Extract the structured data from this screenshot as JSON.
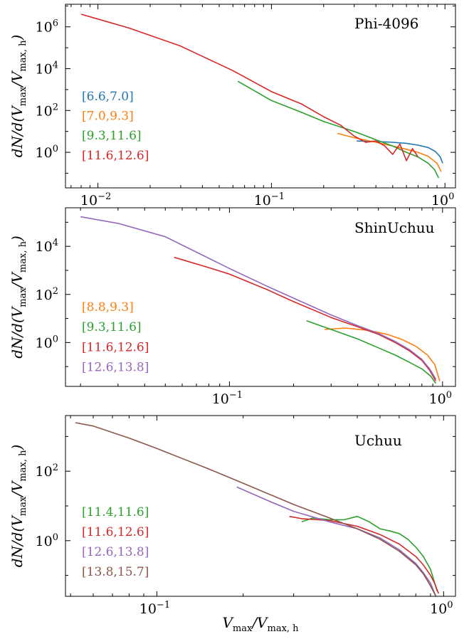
{
  "figure": {
    "xlabel_main": "V",
    "xlabel_sub1": "max",
    "xlabel_div": "/V",
    "xlabel_sub2": "max, h",
    "ylabel": "dN/d(Vmax/Vmax,h)"
  },
  "colors": {
    "blue": "#1f77b4",
    "orange": "#ff7f0e",
    "green": "#2ca02c",
    "red": "#d62728",
    "purple": "#9467bd",
    "brown": "#8c564b"
  },
  "chart_data": [
    {
      "type": "line",
      "title": "Phi-4096",
      "xscale": "log",
      "yscale": "log",
      "xlim": [
        0.0065,
        1.15
      ],
      "ylim": [
        0.02,
        12000000
      ],
      "xticks": [
        {
          "v": 0.01,
          "base": "10",
          "exp": "−2"
        },
        {
          "v": 0.1,
          "base": "10",
          "exp": "−1"
        },
        {
          "v": 1,
          "base": "10",
          "exp": "0"
        }
      ],
      "yticks": [
        {
          "v": 1,
          "base": "10",
          "exp": "0"
        },
        {
          "v": 100,
          "base": "10",
          "exp": "2"
        },
        {
          "v": 10000,
          "base": "10",
          "exp": "4"
        },
        {
          "v": 1000000,
          "base": "10",
          "exp": "6"
        }
      ],
      "legend_position": "left",
      "series": [
        {
          "name": "[6.6,7.0]",
          "color": "#1f77b4",
          "x": [
            0.31,
            0.4,
            0.5,
            0.6,
            0.7,
            0.8,
            0.88,
            0.94,
            0.97
          ],
          "y": [
            3.5,
            3.3,
            3.0,
            2.7,
            2.2,
            1.7,
            1.1,
            0.6,
            0.3
          ]
        },
        {
          "name": "[7.0,9.3]",
          "color": "#ff7f0e",
          "x": [
            0.24,
            0.3,
            0.4,
            0.5,
            0.6,
            0.7,
            0.8,
            0.9,
            0.95
          ],
          "y": [
            8,
            5,
            3,
            2,
            1.4,
            1.0,
            0.65,
            0.3,
            0.12
          ]
        },
        {
          "name": "[9.3,11.6]",
          "color": "#2ca02c",
          "x": [
            0.064,
            0.1,
            0.15,
            0.2,
            0.3,
            0.4,
            0.5,
            0.6,
            0.7,
            0.8,
            0.87,
            0.92
          ],
          "y": [
            2500,
            300,
            80,
            30,
            10,
            4,
            2,
            1.0,
            0.6,
            0.3,
            0.15,
            0.06
          ]
        },
        {
          "name": "[11.6,12.6]",
          "color": "#d62728",
          "x": [
            0.008,
            0.015,
            0.03,
            0.06,
            0.1,
            0.15,
            0.2,
            0.25,
            0.3,
            0.35,
            0.4,
            0.45,
            0.5,
            0.55,
            0.6,
            0.65,
            0.7
          ],
          "y": [
            4000000,
            900000,
            120000,
            8000,
            800,
            200,
            50,
            20,
            6,
            3,
            3.5,
            2,
            0.8,
            2.5,
            0.4,
            1.5,
            0.6
          ]
        }
      ]
    },
    {
      "type": "line",
      "title": "ShinUchuu",
      "xscale": "log",
      "yscale": "log",
      "xlim": [
        0.017,
        1.15
      ],
      "ylim": [
        0.015,
        400000
      ],
      "xticks": [
        {
          "v": 0.1,
          "base": "10",
          "exp": "−1"
        },
        {
          "v": 1,
          "base": "10",
          "exp": "0"
        }
      ],
      "yticks": [
        {
          "v": 1,
          "base": "10",
          "exp": "0"
        },
        {
          "v": 100,
          "base": "10",
          "exp": "2"
        },
        {
          "v": 10000,
          "base": "10",
          "exp": "4"
        }
      ],
      "legend_position": "left",
      "series": [
        {
          "name": "[8.8,9.3]",
          "color": "#ff7f0e",
          "x": [
            0.28,
            0.35,
            0.45,
            0.55,
            0.65,
            0.75,
            0.85,
            0.92,
            0.97
          ],
          "y": [
            3.5,
            4,
            3.2,
            2.2,
            1.3,
            0.7,
            0.3,
            0.12,
            0.025
          ]
        },
        {
          "name": "[9.3,11.6]",
          "color": "#2ca02c",
          "x": [
            0.23,
            0.3,
            0.4,
            0.5,
            0.6,
            0.7,
            0.8,
            0.88,
            0.93
          ],
          "y": [
            8,
            3.5,
            1.4,
            0.6,
            0.3,
            0.15,
            0.08,
            0.04,
            0.02
          ]
        },
        {
          "name": "[11.6,12.6]",
          "color": "#d62728",
          "x": [
            0.055,
            0.08,
            0.1,
            0.15,
            0.2,
            0.3,
            0.4,
            0.5,
            0.6,
            0.7,
            0.8,
            0.87,
            0.93
          ],
          "y": [
            3500,
            1300,
            700,
            160,
            50,
            11,
            4.5,
            2.2,
            1.0,
            0.45,
            0.18,
            0.07,
            0.025
          ]
        },
        {
          "name": "[12.6,13.8]",
          "color": "#9467bd",
          "x": [
            0.02,
            0.03,
            0.05,
            0.1,
            0.15,
            0.2,
            0.3,
            0.4,
            0.5,
            0.6,
            0.7,
            0.8,
            0.87,
            0.93
          ],
          "y": [
            170000,
            90000,
            25000,
            1200,
            220,
            70,
            14,
            5,
            2.4,
            1.1,
            0.5,
            0.2,
            0.08,
            0.03
          ]
        }
      ]
    },
    {
      "type": "line",
      "title": "Uchuu",
      "xscale": "log",
      "yscale": "log",
      "xlim": [
        0.048,
        1.1
      ],
      "ylim": [
        0.025,
        4000
      ],
      "xticks": [
        {
          "v": 0.1,
          "base": "10",
          "exp": "−1"
        },
        {
          "v": 1,
          "base": "10",
          "exp": "0"
        }
      ],
      "yticks": [
        {
          "v": 1,
          "base": "10",
          "exp": "0"
        },
        {
          "v": 100,
          "base": "10",
          "exp": "2"
        }
      ],
      "legend_position": "left",
      "series": [
        {
          "name": "[11.4,11.6]",
          "color": "#2ca02c",
          "x": [
            0.32,
            0.35,
            0.4,
            0.45,
            0.5,
            0.55,
            0.6,
            0.65,
            0.7,
            0.75,
            0.8,
            0.85,
            0.9,
            0.95
          ],
          "y": [
            3.5,
            4.5,
            4.0,
            4.0,
            5,
            3.5,
            2.2,
            1.9,
            1.6,
            1.1,
            0.65,
            0.35,
            0.15,
            0.035
          ]
        },
        {
          "name": "[11.6,12.6]",
          "color": "#d62728",
          "x": [
            0.29,
            0.32,
            0.4,
            0.5,
            0.6,
            0.7,
            0.8,
            0.85,
            0.9,
            0.93,
            0.96
          ],
          "y": [
            5,
            4.3,
            3.8,
            2.6,
            1.5,
            0.8,
            0.35,
            0.2,
            0.1,
            0.06,
            0.03
          ]
        },
        {
          "name": "[12.6,13.8]",
          "color": "#9467bd",
          "x": [
            0.19,
            0.25,
            0.3,
            0.4,
            0.5,
            0.6,
            0.7,
            0.8,
            0.85,
            0.9,
            0.94
          ],
          "y": [
            35,
            13,
            7,
            3.5,
            2.2,
            1.2,
            0.55,
            0.22,
            0.12,
            0.06,
            0.025
          ]
        },
        {
          "name": "[13.8,15.7]",
          "color": "#8c564b",
          "x": [
            0.052,
            0.06,
            0.08,
            0.1,
            0.15,
            0.2,
            0.3,
            0.4,
            0.5,
            0.6,
            0.7,
            0.8,
            0.85,
            0.9,
            0.94
          ],
          "y": [
            2500,
            2000,
            900,
            450,
            120,
            45,
            11,
            4.5,
            2.2,
            1.1,
            0.5,
            0.2,
            0.11,
            0.05,
            0.025
          ]
        }
      ]
    }
  ]
}
